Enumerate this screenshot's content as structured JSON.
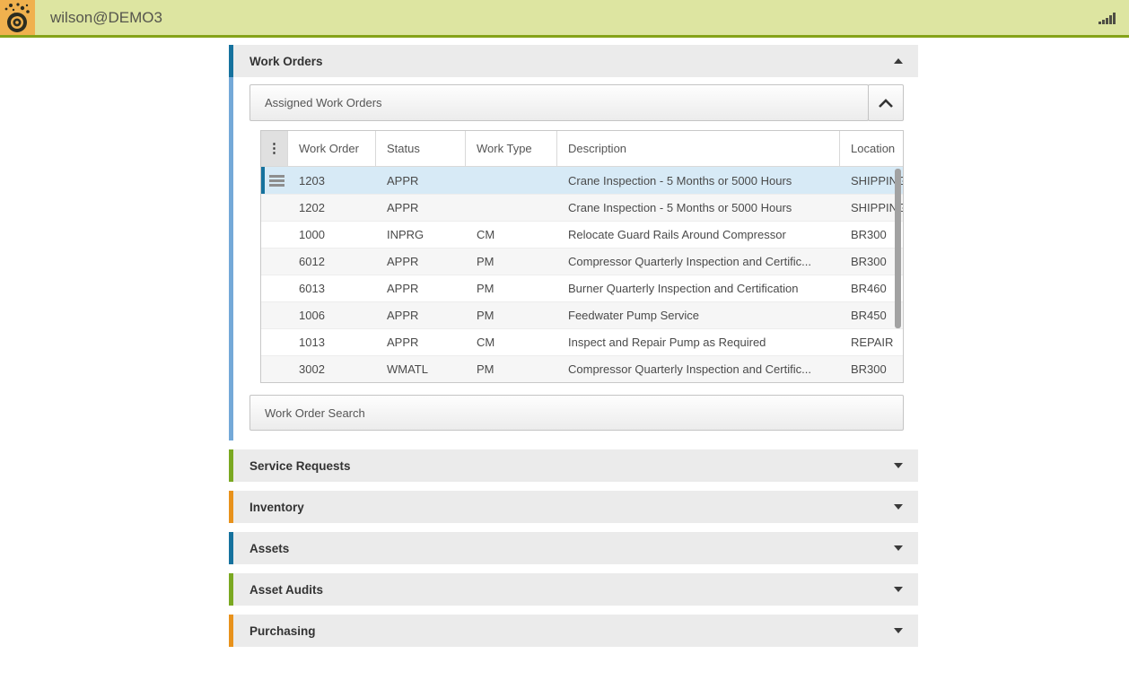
{
  "topbar": {
    "title": "wilson@DEMO3",
    "logo_icon": "snail-disc-icon",
    "signal_icon": "signal-bars-icon",
    "bg": "#dde5a1",
    "border": "#85a319",
    "logo_bg": "#f0b14e"
  },
  "colors": {
    "accent_blue": "#16729e",
    "accent_blue_light": "#74a9d8",
    "accent_green": "#7aa821",
    "accent_orange": "#e8921c",
    "section_header_bg": "#ebebeb",
    "selected_row_bg": "#d7eaf6"
  },
  "work_orders": {
    "title": "Work Orders",
    "state": "expanded",
    "panel_title": "Assigned Work Orders",
    "search_label": "Work Order Search",
    "table": {
      "columns": [
        "Work Order",
        "Status",
        "Work Type",
        "Description",
        "Location"
      ],
      "rows": [
        {
          "work_order": "1203",
          "status": "APPR",
          "work_type": "",
          "description": "Crane Inspection - 5 Months or 5000 Hours",
          "location": "SHIPPING",
          "selected": true
        },
        {
          "work_order": "1202",
          "status": "APPR",
          "work_type": "",
          "description": "Crane Inspection - 5 Months or 5000 Hours",
          "location": "SHIPPING",
          "selected": false
        },
        {
          "work_order": "1000",
          "status": "INPRG",
          "work_type": "CM",
          "description": "Relocate Guard Rails Around Compressor",
          "location": "BR300",
          "selected": false
        },
        {
          "work_order": "6012",
          "status": "APPR",
          "work_type": "PM",
          "description": "Compressor Quarterly Inspection and Certific...",
          "location": "BR300",
          "selected": false
        },
        {
          "work_order": "6013",
          "status": "APPR",
          "work_type": "PM",
          "description": "Burner Quarterly Inspection and Certification",
          "location": "BR460",
          "selected": false
        },
        {
          "work_order": "1006",
          "status": "APPR",
          "work_type": "PM",
          "description": "Feedwater Pump Service",
          "location": "BR450",
          "selected": false
        },
        {
          "work_order": "1013",
          "status": "APPR",
          "work_type": "CM",
          "description": "Inspect and Repair Pump as Required",
          "location": "REPAIR",
          "selected": false
        },
        {
          "work_order": "3002",
          "status": "WMATL",
          "work_type": "PM",
          "description": "Compressor Quarterly Inspection and Certific...",
          "location": "BR300",
          "selected": false
        }
      ]
    }
  },
  "collapsed_sections": [
    {
      "id": "service-requests",
      "label": "Service Requests",
      "accent": "#7aa821"
    },
    {
      "id": "inventory",
      "label": "Inventory",
      "accent": "#e8921c"
    },
    {
      "id": "assets",
      "label": "Assets",
      "accent": "#16729e"
    },
    {
      "id": "asset-audits",
      "label": "Asset Audits",
      "accent": "#7aa821"
    },
    {
      "id": "purchasing",
      "label": "Purchasing",
      "accent": "#e8921c"
    }
  ]
}
